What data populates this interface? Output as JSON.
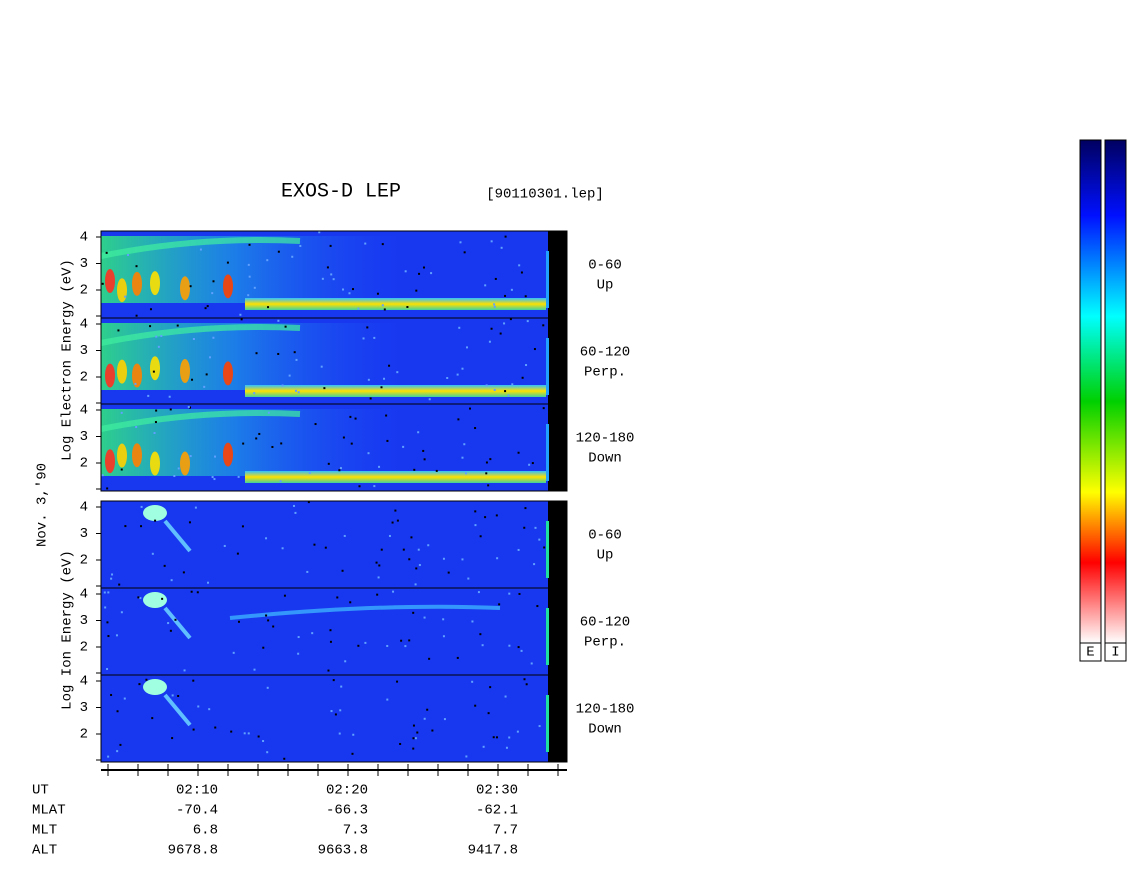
{
  "header": {
    "title": "EXOS-D LEP",
    "file": "[90110301.lep]"
  },
  "y_labels": {
    "electron": "Log Electron Energy (eV)",
    "date": "Nov. 3,'90",
    "ion": "Log Ion Energy (eV)"
  },
  "energy_ticks": [
    "2",
    "3",
    "4"
  ],
  "panels": [
    {
      "range": "0-60",
      "direction": "Up"
    },
    {
      "range": "60-120",
      "direction": "Perp."
    },
    {
      "range": "120-180",
      "direction": "Down"
    },
    {
      "range": "0-60",
      "direction": "Up"
    },
    {
      "range": "60-120",
      "direction": "Perp."
    },
    {
      "range": "120-180",
      "direction": "Down"
    }
  ],
  "footer": {
    "rows": [
      {
        "label": "UT",
        "values": [
          "02:10",
          "02:20",
          "02:30"
        ]
      },
      {
        "label": "MLAT",
        "values": [
          "-70.4",
          "-66.3",
          "-62.1"
        ]
      },
      {
        "label": "MLT",
        "values": [
          "6.8",
          "7.3",
          "7.7"
        ]
      },
      {
        "label": "ALT",
        "values": [
          "9678.8",
          "9663.8",
          "9417.8"
        ]
      }
    ]
  },
  "colorbars": [
    "E",
    "I"
  ]
}
